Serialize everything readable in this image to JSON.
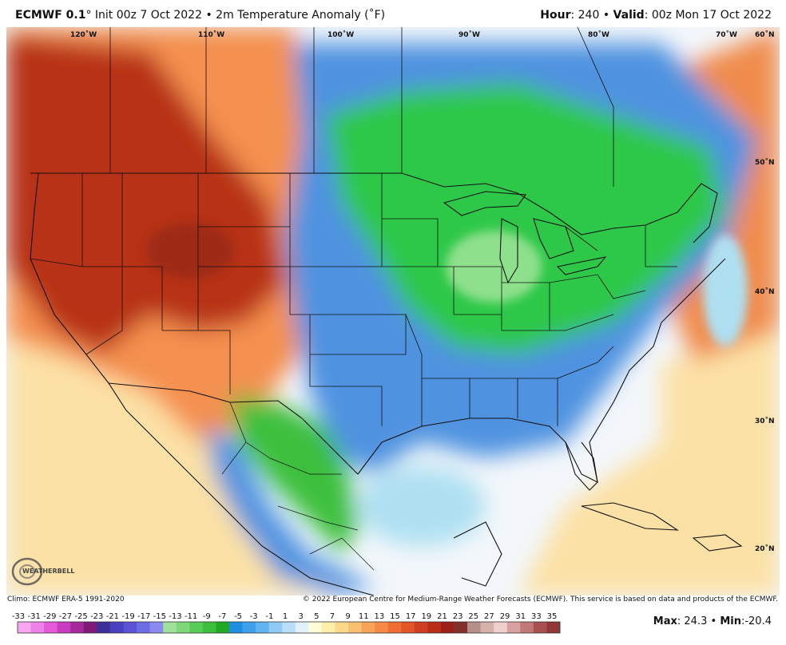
{
  "header": {
    "model": "ECMWF 0.1",
    "degree_symbol": "°",
    "init": "Init 00z 7 Oct 2022",
    "separator": "•",
    "field": "2m Temperature Anomaly (˚F)",
    "hour_label": "Hour",
    "hour_value": ": 240",
    "valid_label": "Valid",
    "valid_value": ": 00z Mon 17 Oct 2022"
  },
  "map": {
    "longitude_labels": [
      "120˚W",
      "110˚W",
      "100˚W",
      "90˚W",
      "80˚W",
      "70˚W"
    ],
    "latitude_labels": [
      "60˚N",
      "50˚N",
      "40˚N",
      "30˚N",
      "20˚N"
    ],
    "logo_text": "WEATHERBELL",
    "colors": {
      "ocean_background": "#f3f7fb",
      "strong_warm": "#b73216",
      "warm": "#e85c2b",
      "mild_warm": "#f7a46e",
      "slight_warm": "#fce1a6",
      "slight_cool": "#aee0f2",
      "cool": "#4f93e0",
      "cold": "#2f8fe6",
      "very_cold": "#2ec84a",
      "cold_core": "#5ad85a",
      "borders": "#111111"
    }
  },
  "credits": {
    "climo": "Climo: ECMWF ERA-5 1991-2020",
    "copyright": "© 2022 European Centre for Medium-Range Weather Forecasts (ECMWF). This service is based on data and products of the ECMWF."
  },
  "legend": {
    "ticks": [
      "-33",
      "-31",
      "-29",
      "-27",
      "-25",
      "-23",
      "-21",
      "-19",
      "-17",
      "-15",
      "-13",
      "-11",
      "-9",
      "-7",
      "-5",
      "-3",
      "-1",
      "1",
      "3",
      "5",
      "7",
      "9",
      "11",
      "13",
      "15",
      "17",
      "19",
      "21",
      "23",
      "25",
      "27",
      "29",
      "31",
      "33",
      "35"
    ],
    "colors": [
      "#f7a6f0",
      "#ee82e8",
      "#e45ad8",
      "#c93cc0",
      "#a42a9c",
      "#7e1b78",
      "#3c2f9a",
      "#4a3fc0",
      "#5c52d8",
      "#6c6ce4",
      "#8a8af0",
      "#9fe09a",
      "#7ed87a",
      "#58cc58",
      "#3cbf3c",
      "#22a822",
      "#1e8fe0",
      "#3ea0ea",
      "#62b4f0",
      "#8ecaf4",
      "#b8def8",
      "#e2f2fc",
      "#fffcd6",
      "#fdeeaa",
      "#fbd98a",
      "#f9c070",
      "#f7a458",
      "#f48a44",
      "#ee6e34",
      "#e25628",
      "#cf3e20",
      "#b82c18",
      "#9c2018",
      "#84302a",
      "#b49088",
      "#d6b0aa",
      "#f0d0cc",
      "#d8a0a0",
      "#c07878",
      "#a85050",
      "#903838"
    ]
  },
  "stats": {
    "max_label": "Max",
    "max_value": ": 24.3",
    "sep": "•",
    "min_label": "Min",
    "min_value": ":-20.4"
  }
}
